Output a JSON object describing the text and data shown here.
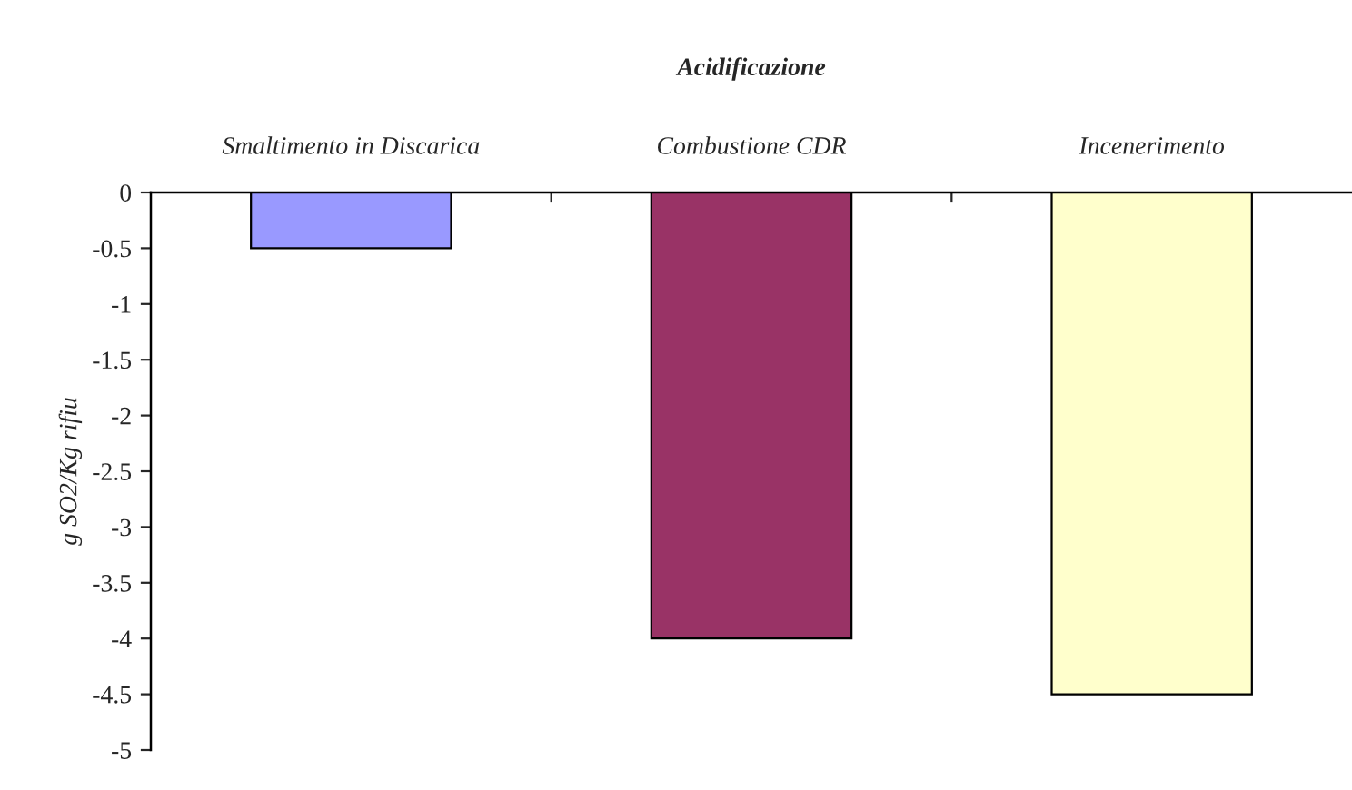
{
  "chart_data": {
    "type": "bar",
    "title": "Acidificazione",
    "ylabel": "g SO2/Kg rifiu",
    "categories": [
      "Smaltimento in Discarica",
      "Combustione CDR",
      "Incenerimento"
    ],
    "values": [
      -0.5,
      -4.0,
      -4.5
    ],
    "colors": [
      "#9999ff",
      "#993366",
      "#ffffcc"
    ],
    "ylim": [
      -5,
      0
    ],
    "yticks": [
      0,
      -0.5,
      -1,
      -1.5,
      -2,
      -2.5,
      -3,
      -3.5,
      -4,
      -4.5,
      -5
    ],
    "grid": false,
    "legend": false
  }
}
